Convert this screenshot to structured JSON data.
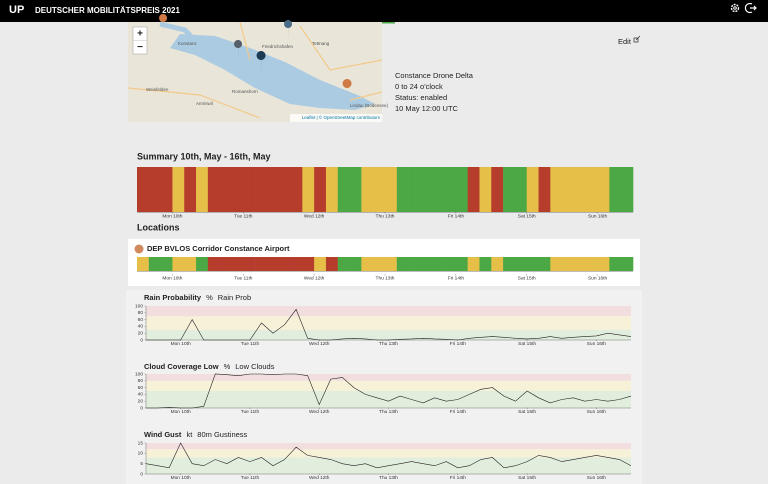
{
  "header": {
    "logo": "UP",
    "title": "DEUTSCHER MOBILITÄTSPREIS 2021"
  },
  "map": {
    "zoom_in": "+",
    "zoom_out": "−",
    "labels": [
      "Konstanz",
      "Friedrichshafen",
      "Tettnang",
      "Romanshorn",
      "Lindau (Bodensee)",
      "Weinfelden",
      "Amriswil"
    ],
    "attribution": "Leaflet | © OpenStreetMap contributors"
  },
  "info": {
    "edit": "Edit",
    "name": "Constance Drone Delta",
    "hours": "0 to 24 o'clock",
    "status": "Status: enabled",
    "time": "10 May 12:00 UTC"
  },
  "palette": {
    "red": "#b63c2c",
    "yellow": "#e5bf47",
    "green": "#4ba845"
  },
  "days": {
    "xlim": [
      0,
      168
    ],
    "ticks": [
      {
        "value": 12,
        "label": "Mon 10th"
      },
      {
        "value": 36,
        "label": "Tue 11th"
      },
      {
        "value": 60,
        "label": "Wed 12th"
      },
      {
        "value": 84,
        "label": "Thu 13th"
      },
      {
        "value": 108,
        "label": "Fri 14th"
      },
      {
        "value": 132,
        "label": "Sat 15th"
      },
      {
        "value": 156,
        "label": "Sun 16th"
      }
    ]
  },
  "summary": {
    "title": "Summary 10th, May - 16th, May",
    "slots": [
      "red",
      "red",
      "red",
      "yellow",
      "red",
      "yellow",
      "red",
      "red",
      "red",
      "red",
      "red",
      "red",
      "red",
      "red",
      "yellow",
      "red",
      "yellow",
      "green",
      "green",
      "yellow",
      "yellow",
      "yellow",
      "green",
      "green",
      "green",
      "green",
      "green",
      "green",
      "red",
      "yellow",
      "red",
      "green",
      "green",
      "yellow",
      "red",
      "yellow",
      "yellow",
      "yellow",
      "yellow",
      "yellow",
      "green",
      "green"
    ]
  },
  "locations": {
    "title": "Locations",
    "items": [
      {
        "name": "DEP BVLOS Corridor Constance Airport",
        "slots": [
          "yellow",
          "green",
          "green",
          "yellow",
          "yellow",
          "green",
          "red",
          "red",
          "red",
          "red",
          "red",
          "red",
          "red",
          "red",
          "red",
          "yellow",
          "red",
          "green",
          "green",
          "yellow",
          "yellow",
          "yellow",
          "green",
          "green",
          "green",
          "green",
          "green",
          "green",
          "yellow",
          "green",
          "yellow",
          "green",
          "green",
          "green",
          "green",
          "yellow",
          "yellow",
          "yellow",
          "yellow",
          "yellow",
          "green",
          "green"
        ]
      }
    ]
  },
  "charts": [
    {
      "title": "Rain Probability",
      "unit": "%",
      "series": "Rain Prob",
      "ylim": [
        0,
        100
      ],
      "yticks": [
        0,
        20,
        40,
        60,
        80,
        100
      ],
      "bands": [
        {
          "from": 0,
          "to": 30,
          "color": "#e1eedd"
        },
        {
          "from": 30,
          "to": 70,
          "color": "#f7f1d8"
        },
        {
          "from": 70,
          "to": 100,
          "color": "#f2dede"
        }
      ],
      "color": "#222",
      "x": [
        0,
        4,
        8,
        12,
        16,
        20,
        24,
        28,
        32,
        36,
        40,
        44,
        48,
        52,
        56,
        60,
        64,
        68,
        72,
        76,
        80,
        84,
        88,
        92,
        96,
        100,
        104,
        108,
        112,
        116,
        120,
        124,
        128,
        132,
        136,
        140,
        144,
        148,
        152,
        156,
        160,
        164,
        168
      ],
      "values": [
        0,
        0,
        0,
        0,
        60,
        0,
        0,
        0,
        0,
        0,
        50,
        20,
        45,
        90,
        5,
        0,
        0,
        3,
        5,
        3,
        0,
        0,
        2,
        3,
        5,
        3,
        2,
        0,
        5,
        8,
        10,
        8,
        5,
        3,
        5,
        10,
        5,
        8,
        10,
        12,
        20,
        15,
        10
      ]
    },
    {
      "title": "Cloud Coverage Low",
      "unit": "%",
      "series": "Low Clouds",
      "ylim": [
        0,
        100
      ],
      "yticks": [
        0,
        20,
        40,
        60,
        80,
        100
      ],
      "bands": [
        {
          "from": 0,
          "to": 50,
          "color": "#e1eedd"
        },
        {
          "from": 50,
          "to": 80,
          "color": "#f7f1d8"
        },
        {
          "from": 80,
          "to": 100,
          "color": "#f2dede"
        }
      ],
      "color": "#222",
      "x": [
        0,
        4,
        8,
        12,
        16,
        20,
        24,
        28,
        32,
        36,
        40,
        44,
        48,
        52,
        56,
        60,
        64,
        68,
        72,
        76,
        80,
        84,
        88,
        92,
        96,
        100,
        104,
        108,
        112,
        116,
        120,
        124,
        128,
        132,
        136,
        140,
        144,
        148,
        152,
        156,
        160,
        164,
        168
      ],
      "values": [
        0,
        0,
        2,
        0,
        0,
        5,
        100,
        98,
        95,
        100,
        100,
        98,
        100,
        100,
        95,
        10,
        85,
        90,
        60,
        40,
        30,
        20,
        35,
        25,
        15,
        30,
        20,
        25,
        40,
        55,
        60,
        35,
        20,
        50,
        30,
        15,
        25,
        30,
        20,
        25,
        20,
        25,
        35
      ]
    },
    {
      "title": "Wind Gust",
      "unit": "kt",
      "series": "80m  Gustiness",
      "ylim": [
        0,
        15
      ],
      "yticks": [
        0,
        5,
        10,
        15
      ],
      "bands": [
        {
          "from": 0,
          "to": 8,
          "color": "#e1eedd"
        },
        {
          "from": 8,
          "to": 12,
          "color": "#f7f1d8"
        },
        {
          "from": 12,
          "to": 15,
          "color": "#f2dede"
        }
      ],
      "color": "#222",
      "x": [
        0,
        4,
        8,
        12,
        16,
        20,
        24,
        28,
        32,
        36,
        40,
        44,
        48,
        52,
        56,
        60,
        64,
        68,
        72,
        76,
        80,
        84,
        88,
        92,
        96,
        100,
        104,
        108,
        112,
        116,
        120,
        124,
        128,
        132,
        136,
        140,
        144,
        148,
        152,
        156,
        160,
        164,
        168
      ],
      "values": [
        5,
        4,
        3,
        15,
        5,
        4,
        7,
        5,
        8,
        6,
        8,
        4,
        7,
        13,
        9,
        8,
        7,
        5,
        4,
        5,
        3,
        4,
        5,
        6,
        5,
        4,
        6,
        3,
        4,
        7,
        8,
        3,
        4,
        6,
        9,
        8,
        6,
        7,
        8,
        9,
        8,
        7,
        4
      ]
    }
  ]
}
